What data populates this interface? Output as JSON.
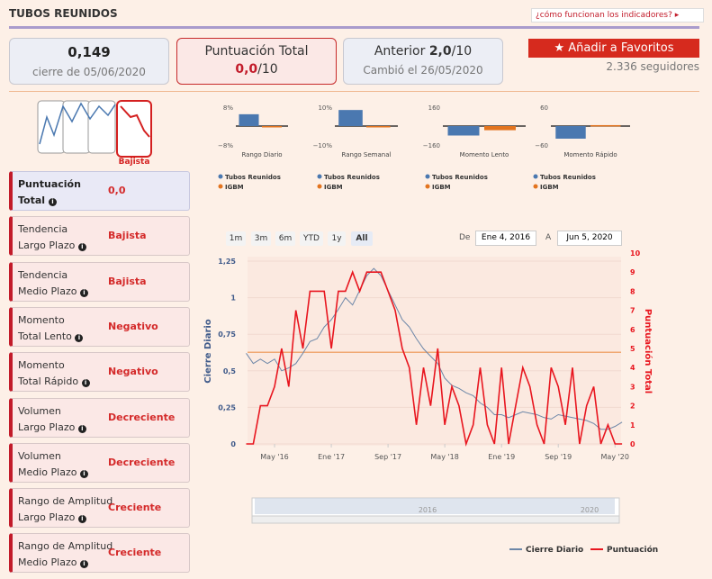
{
  "header": {
    "title": "TUBOS REUNIDOS",
    "help_link": "¿cómo funcionan los indicadores?"
  },
  "cards": {
    "price": {
      "value": "0,149",
      "caption": "cierre de 05/06/2020"
    },
    "score": {
      "title": "Puntuación Total",
      "value": "0,0",
      "suffix": "/10"
    },
    "previous": {
      "label": "Anterior",
      "value": "2,0",
      "suffix": "/10",
      "caption": "Cambió el 26/05/2020"
    },
    "favorite": {
      "button": "Añadir a Favoritos",
      "followers": "2.336 seguidores"
    }
  },
  "trend_icon": {
    "label": "Bajista"
  },
  "indicators": [
    {
      "label": [
        "Puntuación",
        "Total"
      ],
      "value": "0,0"
    },
    {
      "label": [
        "Tendencia",
        "Largo Plazo"
      ],
      "value": "Bajista"
    },
    {
      "label": [
        "Tendencia",
        "Medio Plazo"
      ],
      "value": "Bajista"
    },
    {
      "label": [
        "Momento",
        "Total Lento"
      ],
      "value": "Negativo"
    },
    {
      "label": [
        "Momento",
        "Total Rápido"
      ],
      "value": "Negativo"
    },
    {
      "label": [
        "Volumen",
        "Largo Plazo"
      ],
      "value": "Decreciente"
    },
    {
      "label": [
        "Volumen",
        "Medio Plazo"
      ],
      "value": "Decreciente"
    },
    {
      "label": [
        "Rango de Amplitud",
        "Largo Plazo"
      ],
      "value": "Creciente"
    },
    {
      "label": [
        "Rango de Amplitud",
        "Medio Plazo"
      ],
      "value": "Creciente"
    }
  ],
  "range_selector": {
    "buttons": [
      "1m",
      "3m",
      "6m",
      "YTD",
      "1y",
      "All"
    ],
    "active": "All"
  },
  "date_range": {
    "from_label": "De",
    "from": "Ene 4, 2016",
    "to_label": "A",
    "to": "Jun 5, 2020"
  },
  "navigator": {
    "labels": [
      "2016",
      "2020"
    ]
  },
  "chart_data": [
    {
      "type": "bar",
      "title": "Rango Diario",
      "ylim": [
        -8,
        8
      ],
      "yticks": [
        {
          "value": 8,
          "label": "8%"
        },
        {
          "value": -8,
          "label": "−8%"
        }
      ],
      "series": [
        {
          "name": "Tubos Reunidos",
          "color": "#4a78b0",
          "values": [
            5
          ]
        },
        {
          "name": "IGBM",
          "color": "#e3741f",
          "values": [
            -0.4
          ]
        }
      ]
    },
    {
      "type": "bar",
      "title": "Rango Semanal",
      "ylim": [
        -10,
        10
      ],
      "yticks": [
        {
          "value": 10,
          "label": "10%"
        },
        {
          "value": -10,
          "label": "−10%"
        }
      ],
      "series": [
        {
          "name": "Tubos Reunidos",
          "color": "#4a78b0",
          "values": [
            8.5
          ]
        },
        {
          "name": "IGBM",
          "color": "#e3741f",
          "values": [
            -0.4
          ]
        }
      ]
    },
    {
      "type": "bar",
      "title": "Momento Lento",
      "ylim": [
        -160,
        160
      ],
      "yticks": [
        160,
        {
          "value": -160,
          "label": "−160"
        }
      ],
      "series": [
        {
          "name": "Tubos Reunidos",
          "color": "#4a78b0",
          "values": [
            -80
          ]
        },
        {
          "name": "IGBM",
          "color": "#e3741f",
          "values": [
            -35
          ]
        }
      ]
    },
    {
      "type": "bar",
      "title": "Momento Rápido",
      "ylim": [
        -60,
        60
      ],
      "yticks": [
        60,
        {
          "value": -60,
          "label": "−60"
        }
      ],
      "series": [
        {
          "name": "Tubos Reunidos",
          "color": "#4a78b0",
          "values": [
            -40
          ]
        },
        {
          "name": "IGBM",
          "color": "#e3741f",
          "values": [
            3
          ]
        }
      ]
    },
    {
      "type": "line",
      "x": [
        "2016-01",
        "2016-02",
        "2016-03",
        "2016-04",
        "2016-05",
        "2016-06",
        "2016-07",
        "2016-08",
        "2016-09",
        "2016-10",
        "2016-11",
        "2016-12",
        "2017-01",
        "2017-02",
        "2017-03",
        "2017-04",
        "2017-05",
        "2017-06",
        "2017-07",
        "2017-08",
        "2017-09",
        "2017-10",
        "2017-11",
        "2017-12",
        "2018-01",
        "2018-02",
        "2018-03",
        "2018-04",
        "2018-05",
        "2018-06",
        "2018-07",
        "2018-08",
        "2018-09",
        "2018-10",
        "2018-11",
        "2018-12",
        "2019-01",
        "2019-02",
        "2019-03",
        "2019-04",
        "2019-05",
        "2019-06",
        "2019-07",
        "2019-08",
        "2019-09",
        "2019-10",
        "2019-11",
        "2019-12",
        "2020-01",
        "2020-02",
        "2020-03",
        "2020-04",
        "2020-05",
        "2020-06"
      ],
      "xticks": [
        {
          "value": "2016-05",
          "label": "May '16"
        },
        {
          "value": "2017-01",
          "label": "Ene '17"
        },
        {
          "value": "2017-09",
          "label": "Sep '17"
        },
        {
          "value": "2018-05",
          "label": "May '18"
        },
        {
          "value": "2019-01",
          "label": "Ene '19"
        },
        {
          "value": "2019-09",
          "label": "Sep '19"
        },
        {
          "value": "2020-05",
          "label": "May '20"
        }
      ],
      "ylabel": "Cierre Diario",
      "y2label": "Puntuación Total",
      "ylim": [
        0,
        1.25
      ],
      "yticks": [
        0,
        {
          "value": 0.25,
          "label": "0,25"
        },
        {
          "value": 0.5,
          "label": "0,5"
        },
        {
          "value": 0.75,
          "label": "0,75"
        },
        1,
        {
          "value": 1.25,
          "label": "1,25"
        }
      ],
      "y2lim": [
        0,
        10
      ],
      "y2ticks": [
        0,
        1,
        2,
        3,
        4,
        5,
        6,
        7,
        8,
        9,
        10
      ],
      "reference_line": {
        "axis": "y2",
        "value": 4.8,
        "color": "#f0a872"
      },
      "grid": true,
      "series": [
        {
          "name": "Cierre Diario",
          "color": "#6d87a8",
          "axis": "y",
          "values": [
            0.62,
            0.55,
            0.58,
            0.55,
            0.58,
            0.5,
            0.52,
            0.55,
            0.62,
            0.7,
            0.72,
            0.8,
            0.85,
            0.92,
            1.0,
            0.95,
            1.05,
            1.15,
            1.2,
            1.15,
            1.05,
            0.95,
            0.85,
            0.8,
            0.72,
            0.65,
            0.6,
            0.55,
            0.45,
            0.4,
            0.38,
            0.35,
            0.33,
            0.28,
            0.25,
            0.2,
            0.2,
            0.18,
            0.2,
            0.22,
            0.21,
            0.2,
            0.18,
            0.17,
            0.2,
            0.19,
            0.18,
            0.17,
            0.16,
            0.14,
            0.1,
            0.1,
            0.12,
            0.149
          ]
        },
        {
          "name": "Puntuación",
          "color": "#e8161f",
          "axis": "y2",
          "values": [
            0,
            0,
            2,
            2,
            3,
            5,
            3,
            7,
            5,
            8,
            8,
            8,
            5,
            8,
            8,
            9,
            8,
            9,
            9,
            9,
            8,
            7,
            5,
            4,
            1,
            4,
            2,
            5,
            1,
            3,
            2,
            0,
            1,
            4,
            1,
            0,
            4,
            0,
            2,
            4,
            3,
            1,
            0,
            4,
            3,
            1,
            4,
            0,
            2,
            3,
            0,
            1,
            0,
            0
          ]
        }
      ]
    }
  ]
}
